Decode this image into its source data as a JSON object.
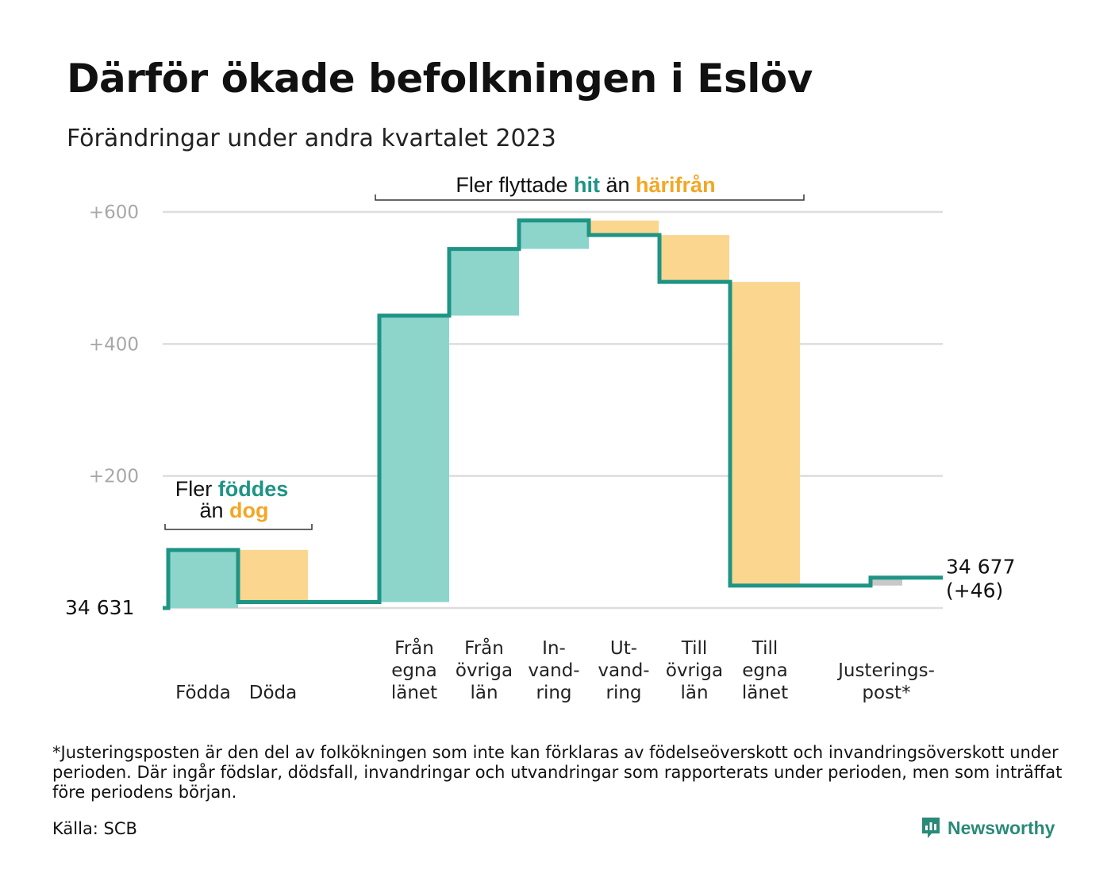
{
  "title": "Därför ökade befolkningen i Eslöv",
  "subtitle": "Förändringar under andra kvartalet 2023",
  "footnote": "*Justeringsposten är den del av folkökningen som inte kan förklaras av födelseöverskott och invandringsöverskott under perioden. Där ingår födslar, dödsfall, invandringar och utvandringar som rapporterats under perioden, men som inträffat före periodens början.",
  "source": "Källa: SCB",
  "brand": "Newsworthy",
  "colors": {
    "positive_fill": "#8dd5cb",
    "negative_fill": "#fbd68f",
    "adjust_fill": "#c8c8c8",
    "line": "#1e9485",
    "grid": "#dddddd",
    "teal_text": "#1e9485",
    "orange_text": "#f5a623"
  },
  "chart_data": {
    "type": "waterfall",
    "base_label": "34  631",
    "end_label": [
      "34 677",
      "(+46)"
    ],
    "ylim": [
      0,
      600
    ],
    "yticks": [
      {
        "value": 200,
        "label": "+200"
      },
      {
        "value": 400,
        "label": "+400"
      },
      {
        "value": 600,
        "label": "+600"
      }
    ],
    "grid": true,
    "steps": [
      {
        "label": [
          "Födda"
        ],
        "value": 88,
        "kind": "positive"
      },
      {
        "label": [
          "Döda"
        ],
        "value": -79,
        "kind": "negative"
      },
      {
        "label": [
          "Från",
          "egna",
          "länet"
        ],
        "value": 434,
        "kind": "positive"
      },
      {
        "label": [
          "Från",
          "övriga",
          "län"
        ],
        "value": 101,
        "kind": "positive"
      },
      {
        "label": [
          "In-",
          "vand-",
          "ring"
        ],
        "value": 43,
        "kind": "positive"
      },
      {
        "label": [
          "Ut-",
          "vand-",
          "ring"
        ],
        "value": -22,
        "kind": "negative"
      },
      {
        "label": [
          "Till",
          "övriga",
          "län"
        ],
        "value": -71,
        "kind": "negative"
      },
      {
        "label": [
          "Till",
          "egna",
          "länet"
        ],
        "value": -460,
        "kind": "negative"
      },
      {
        "label": [
          "Justerings-",
          "post*"
        ],
        "value": 12,
        "kind": "adjustment"
      }
    ],
    "annotations": [
      {
        "parts": [
          {
            "text": "Fler ",
            "style": "plain"
          },
          {
            "text": "föddes",
            "style": "teal"
          }
        ],
        "parts2": [
          {
            "text": "än ",
            "style": "plain"
          },
          {
            "text": "dog",
            "style": "orange"
          }
        ]
      },
      {
        "parts": [
          {
            "text": "Fler flyttade ",
            "style": "plain"
          },
          {
            "text": "hit",
            "style": "teal"
          },
          {
            "text": " än ",
            "style": "plain"
          },
          {
            "text": "härifrån",
            "style": "orange"
          }
        ]
      }
    ]
  }
}
